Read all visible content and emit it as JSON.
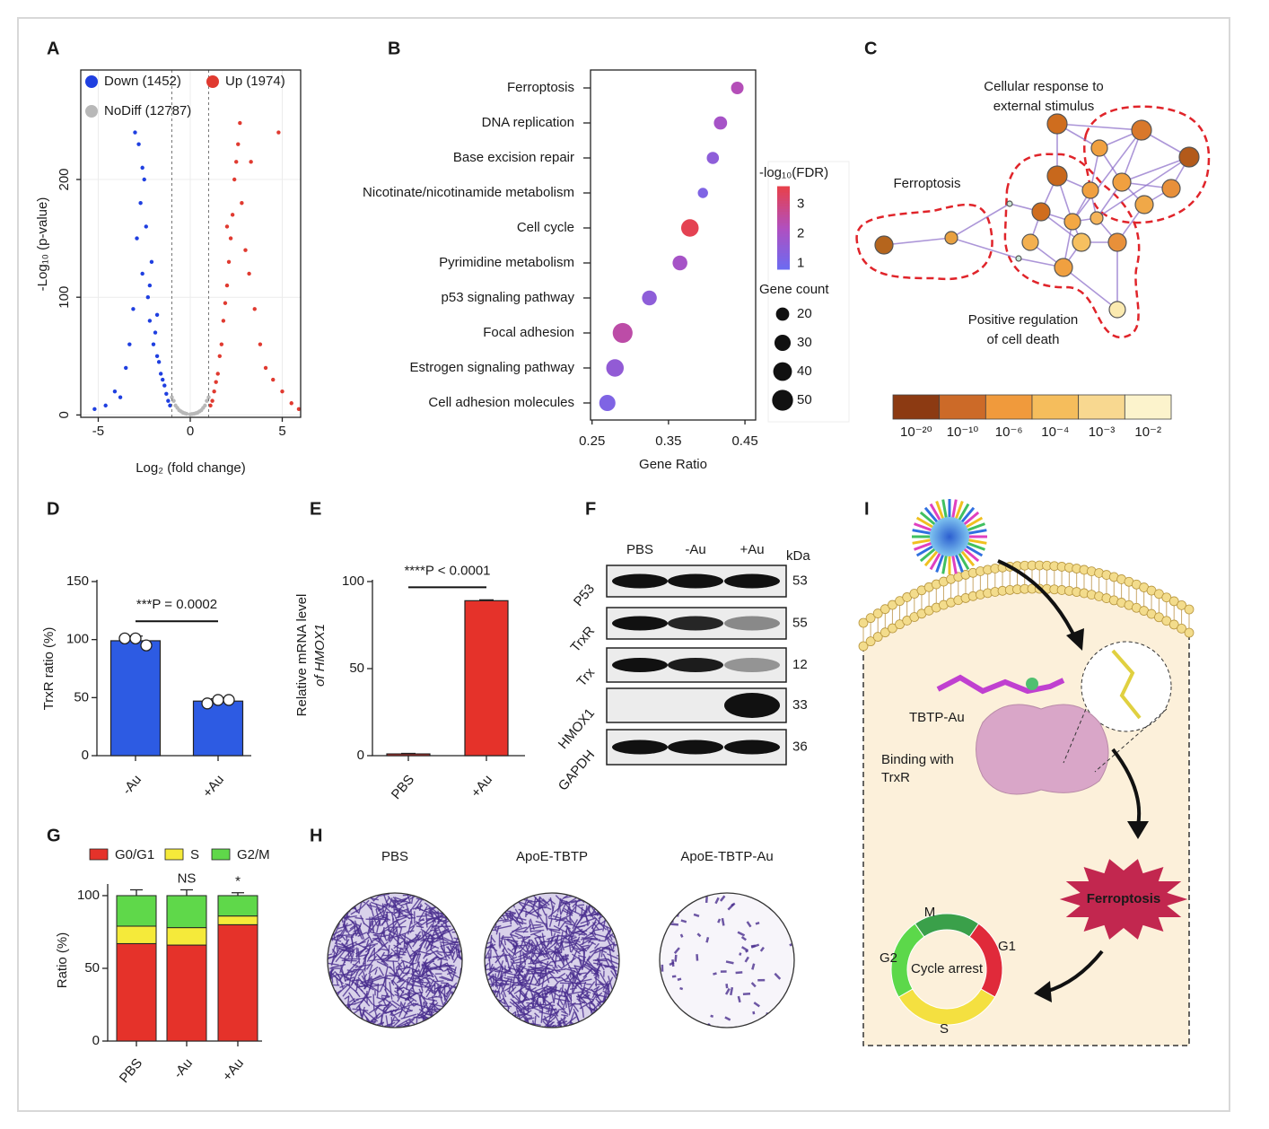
{
  "panel_labels": [
    "A",
    "B",
    "C",
    "D",
    "E",
    "F",
    "G",
    "H",
    "I"
  ],
  "chart_data": [
    {
      "type": "scatter",
      "xlabel": "Log₂ (fold change)",
      "ylabel": "-Log₁₀ (p-value)",
      "xlim": [
        -5.95,
        6
      ],
      "ylim": [
        -2,
        293
      ],
      "xticks": [
        -5,
        0,
        5
      ],
      "yticks": [
        0,
        100,
        200
      ],
      "grid": true,
      "legend": "upper left",
      "vlines": [
        -1,
        1
      ],
      "series": [
        {
          "name": "Down (1452)",
          "color": "#1f3fe0",
          "x": [
            -5.2,
            -4.6,
            -4.1,
            -3.8,
            -3.5,
            -3.3,
            -3.1,
            -2.9,
            -2.8,
            -2.7,
            -2.6,
            -2.5,
            -2.4,
            -2.3,
            -2.2,
            -2.1,
            -2.0,
            -1.9,
            -1.8,
            -1.7,
            -1.6,
            -1.5,
            -1.4,
            -1.3,
            -1.2,
            -1.1,
            -3.0,
            -2.6,
            -2.2,
            -1.8
          ],
          "values": [
            5,
            8,
            20,
            15,
            40,
            60,
            90,
            150,
            230,
            180,
            120,
            200,
            160,
            100,
            80,
            130,
            60,
            70,
            50,
            45,
            35,
            30,
            25,
            18,
            12,
            8,
            240,
            210,
            110,
            85
          ]
        },
        {
          "name": "Up (1974)",
          "color": "#e03a30",
          "x": [
            1.1,
            1.2,
            1.3,
            1.4,
            1.5,
            1.6,
            1.7,
            1.8,
            1.9,
            2.0,
            2.1,
            2.2,
            2.3,
            2.4,
            2.5,
            2.6,
            2.8,
            3.0,
            3.2,
            3.5,
            3.8,
            4.1,
            4.5,
            5.0,
            5.5,
            5.9,
            2.7,
            3.3,
            2.0,
            4.8
          ],
          "values": [
            8,
            12,
            20,
            28,
            35,
            50,
            60,
            80,
            95,
            110,
            130,
            150,
            170,
            200,
            215,
            230,
            180,
            140,
            120,
            90,
            60,
            40,
            30,
            20,
            10,
            5,
            248,
            215,
            160,
            240
          ]
        },
        {
          "name": "NoDiff (12787)",
          "color": "#b8b8b8",
          "x": [
            -1.0,
            -0.8,
            -0.6,
            -0.4,
            -0.2,
            0,
            0.2,
            0.4,
            0.6,
            0.8,
            1.0,
            -0.9,
            -0.5,
            0.5,
            0.9,
            -0.7,
            0.7,
            -0.3,
            0.3,
            0.1
          ],
          "values": [
            15,
            8,
            4,
            2,
            1,
            0.5,
            1,
            2,
            4,
            8,
            15,
            12,
            3,
            3,
            12,
            6,
            6,
            1.5,
            1.5,
            0.8
          ]
        }
      ]
    },
    {
      "type": "bubble",
      "xlabel": "Gene Ratio",
      "categories": [
        "Ferroptosis",
        "DNA replication",
        "Base excision repair",
        "Nicotinate/nicotinamide metabolism",
        "Cell cycle",
        "Pyrimidine metabolism",
        "p53 signaling pathway",
        "Focal adhesion",
        "Estrogen signaling pathway",
        "Cell adhesion molecules"
      ],
      "gene_ratio": [
        0.44,
        0.418,
        0.408,
        0.395,
        0.378,
        0.365,
        0.325,
        0.29,
        0.28,
        0.27
      ],
      "fdr": [
        2.3,
        2.0,
        1.5,
        1.2,
        3.5,
        2.0,
        1.5,
        2.5,
        1.6,
        1.2
      ],
      "count": [
        18,
        20,
        17,
        12,
        35,
        25,
        25,
        45,
        35,
        30
      ],
      "xlim": [
        0.248,
        0.464
      ],
      "xticks": [
        0.25,
        0.35,
        0.45
      ],
      "color_title": "-log₁₀(FDR)",
      "clim": [
        0.8,
        3.6
      ],
      "cticks": [
        1,
        2,
        3
      ],
      "colormap": [
        "#6b6cf2",
        "#b04fc0",
        "#e8414a"
      ],
      "size_title": "Gene count",
      "size_legend": [
        20,
        30,
        40,
        50
      ]
    },
    {
      "type": "bar",
      "ylabel": "TrxR ratio (%)",
      "categories": [
        "-Au",
        "+Au"
      ],
      "values": [
        99,
        47
      ],
      "errors": [
        4,
        2
      ],
      "points": [
        [
          101,
          101,
          95
        ],
        [
          45,
          48,
          48
        ]
      ],
      "color": "#2d5be3",
      "ylim": [
        0,
        150
      ],
      "yticks": [
        0,
        50,
        100,
        150
      ],
      "annotation": "***P = 0.0002"
    },
    {
      "type": "bar",
      "ylabel": [
        "Relative mRNA level",
        "of HMOX1"
      ],
      "categories": [
        "PBS",
        "+Au"
      ],
      "values": [
        1,
        89
      ],
      "errors": [
        0.3,
        0.5
      ],
      "color": "#e5322a",
      "ylim": [
        0,
        100
      ],
      "yticks": [
        0,
        50,
        100
      ],
      "annotation": "****P < 0.0001"
    },
    {
      "type": "stacked_bar",
      "ylabel": "Ratio (%)",
      "categories": [
        "PBS",
        "-Au",
        "+Au"
      ],
      "series": [
        {
          "name": "G0/G1",
          "color": "#e5322a",
          "values": [
            67,
            66,
            80
          ],
          "errors": [
            4,
            5,
            3
          ]
        },
        {
          "name": "S",
          "color": "#f5ea3a",
          "values": [
            12,
            12,
            6
          ],
          "errors": [
            2,
            2,
            3
          ]
        },
        {
          "name": "G2/M",
          "color": "#5fd84a",
          "values": [
            21,
            22,
            14
          ],
          "errors": [
            4,
            4,
            2
          ]
        }
      ],
      "ylim": [
        0,
        108
      ],
      "yticks": [
        0,
        50,
        100
      ],
      "legend": "top",
      "annotations": [
        {
          "category": "-Au",
          "text": "NS"
        },
        {
          "category": "+Au",
          "text": "*"
        }
      ]
    }
  ],
  "network": {
    "labels": [
      [
        "Cellular response to",
        "external stimulus"
      ],
      [
        "Ferroptosis"
      ],
      [
        "Positive regulation",
        "of cell death"
      ]
    ],
    "colorbar": {
      "colors": [
        "#8c3a12",
        "#cc6a28",
        "#f09a3c",
        "#f5bd5c",
        "#f8d890",
        "#fcf3cc"
      ],
      "labels": [
        "10⁻²⁰",
        "10⁻¹⁰",
        "10⁻⁶",
        "10⁻⁴",
        "10⁻³",
        "10⁻²"
      ]
    }
  },
  "blot": {
    "columns": [
      "PBS",
      "-Au",
      "+Au"
    ],
    "unit": "kDa",
    "rows": [
      {
        "name": "P53",
        "kda": "53"
      },
      {
        "name": "TrxR",
        "kda": "55"
      },
      {
        "name": "Trx",
        "kda": "12"
      },
      {
        "name": "HMOX1",
        "kda": "33"
      },
      {
        "name": "GAPDH",
        "kda": "36"
      }
    ]
  },
  "colony": {
    "labels": [
      "PBS",
      "ApoE-TBTP",
      "ApoE-TBTP-Au"
    ]
  },
  "schematic": {
    "compound": "TBTP-Au",
    "binding": [
      "Binding with",
      "TrxR"
    ],
    "ferroptosis": "Ferroptosis",
    "cycle": {
      "center": "Cycle arrest",
      "phases": [
        "M",
        "G1",
        "S",
        "G2"
      ]
    }
  }
}
